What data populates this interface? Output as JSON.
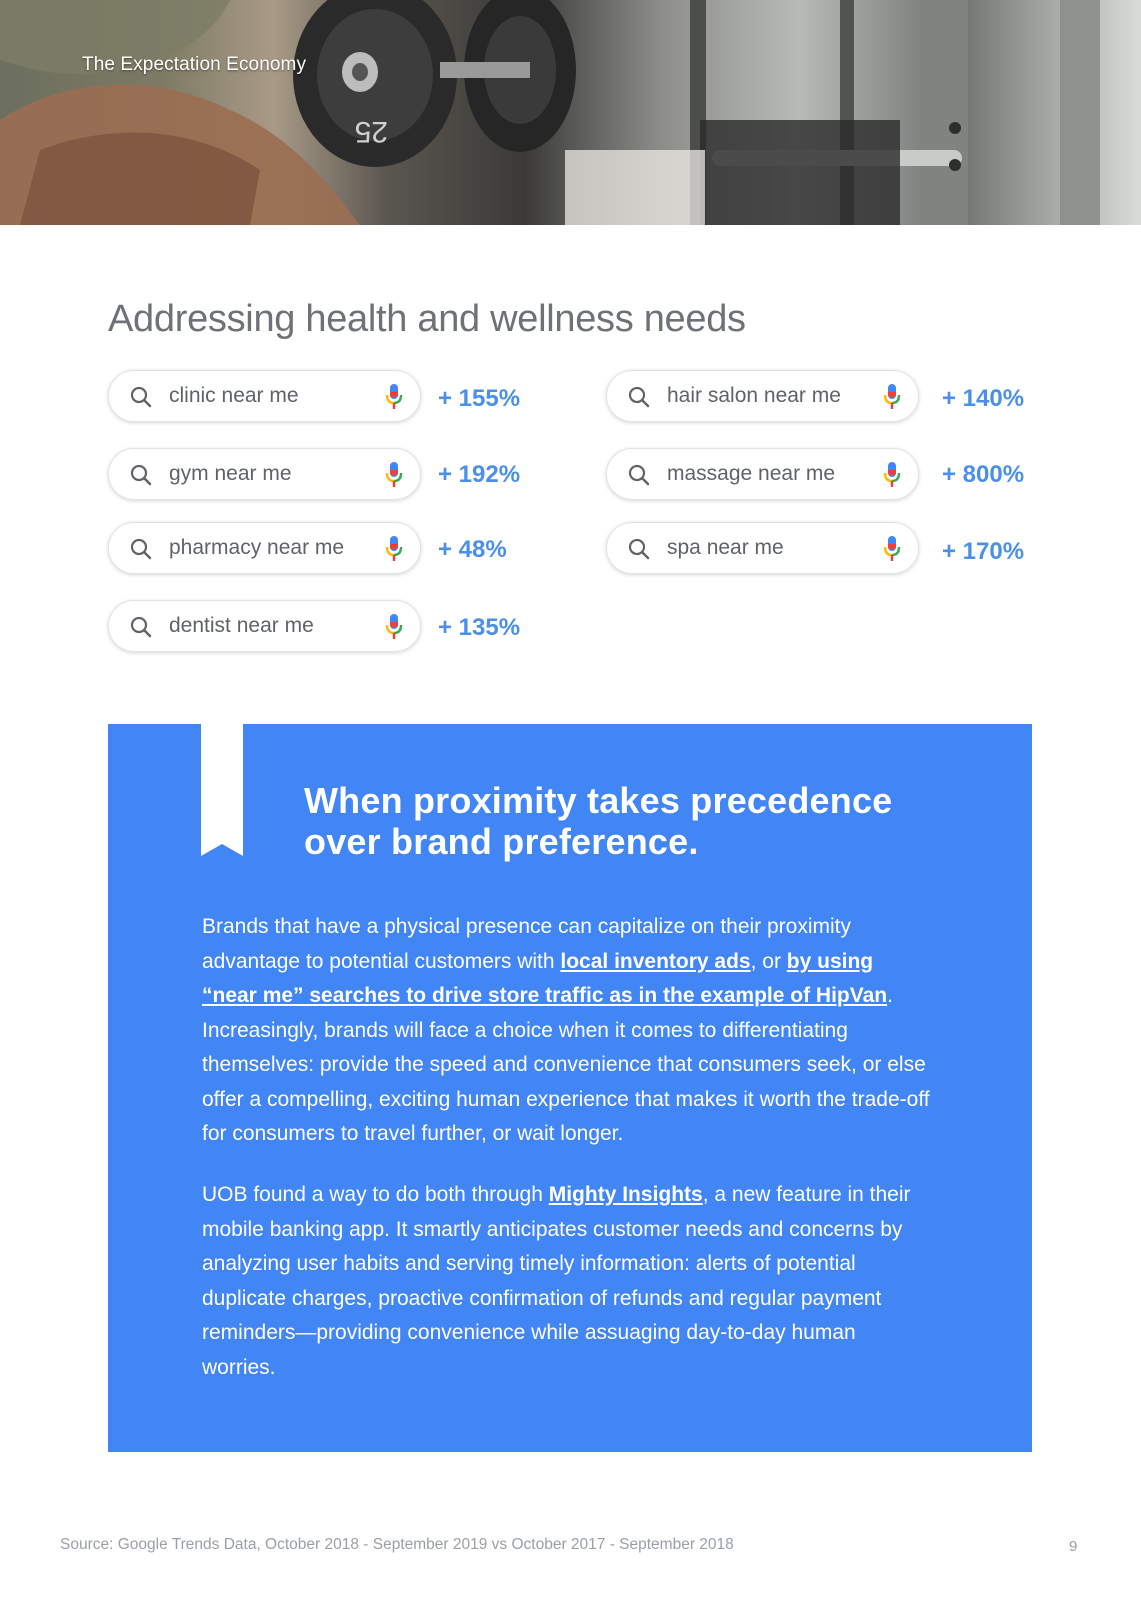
{
  "header": {
    "title": "The Expectation Economy",
    "photo_alt": "weightlifting-photo",
    "dumbbell_label": "25"
  },
  "section_title": "Addressing health and wellness needs",
  "searches": [
    {
      "query": "clinic near me",
      "change": "+ 155%"
    },
    {
      "query": "gym near me",
      "change": "+ 192%"
    },
    {
      "query": "pharmacy near me",
      "change": "+ 48%"
    },
    {
      "query": "dentist near me",
      "change": "+ 135%"
    },
    {
      "query": "hair salon near me",
      "change": "+ 140%"
    },
    {
      "query": "massage near me",
      "change": "+ 800%"
    },
    {
      "query": "spa near me",
      "change": "+ 170%"
    }
  ],
  "callout": {
    "heading": "When proximity takes precedence over brand preference.",
    "p1_text1": "Brands that have a physical presence can capitalize on their proximity advantage to potential customers with ",
    "p1_link1": "local inventory ads",
    "p1_text2": ", or ",
    "p1_link2": "by using “near me” searches to drive store traffic as in the example of HipVan",
    "p1_text3": ". Increasingly, brands will face a choice when it comes to differentiating themselves: provide the speed and convenience that consumers seek, or else offer a compelling, exciting human experience that makes it worth the trade-off for consumers to travel further, or wait longer.",
    "p2_text1": "UOB found a way to do both through ",
    "p2_link1": "Mighty Insights",
    "p2_text2": ", a new feature in their mobile banking app. It smartly anticipates customer needs and concerns by analyzing user habits and serving timely information: alerts of potential duplicate charges, proactive confirmation of refunds and regular payment reminders—providing convenience while assuaging day-to-day human worries."
  },
  "footer": {
    "source": "Source: Google Trends Data, October 2018 - September 2019 vs October 2017 - September 2018",
    "page_number": "9"
  },
  "colors": {
    "accent_blue": "#4285f4",
    "percent_blue": "#4a90e8",
    "mic_blue": "#4285f4",
    "mic_red": "#ea4335",
    "mic_yellow": "#fbbc04",
    "mic_green": "#34a853"
  },
  "icons": [
    "search-icon",
    "microphone-icon",
    "bookmark-ribbon-icon"
  ]
}
